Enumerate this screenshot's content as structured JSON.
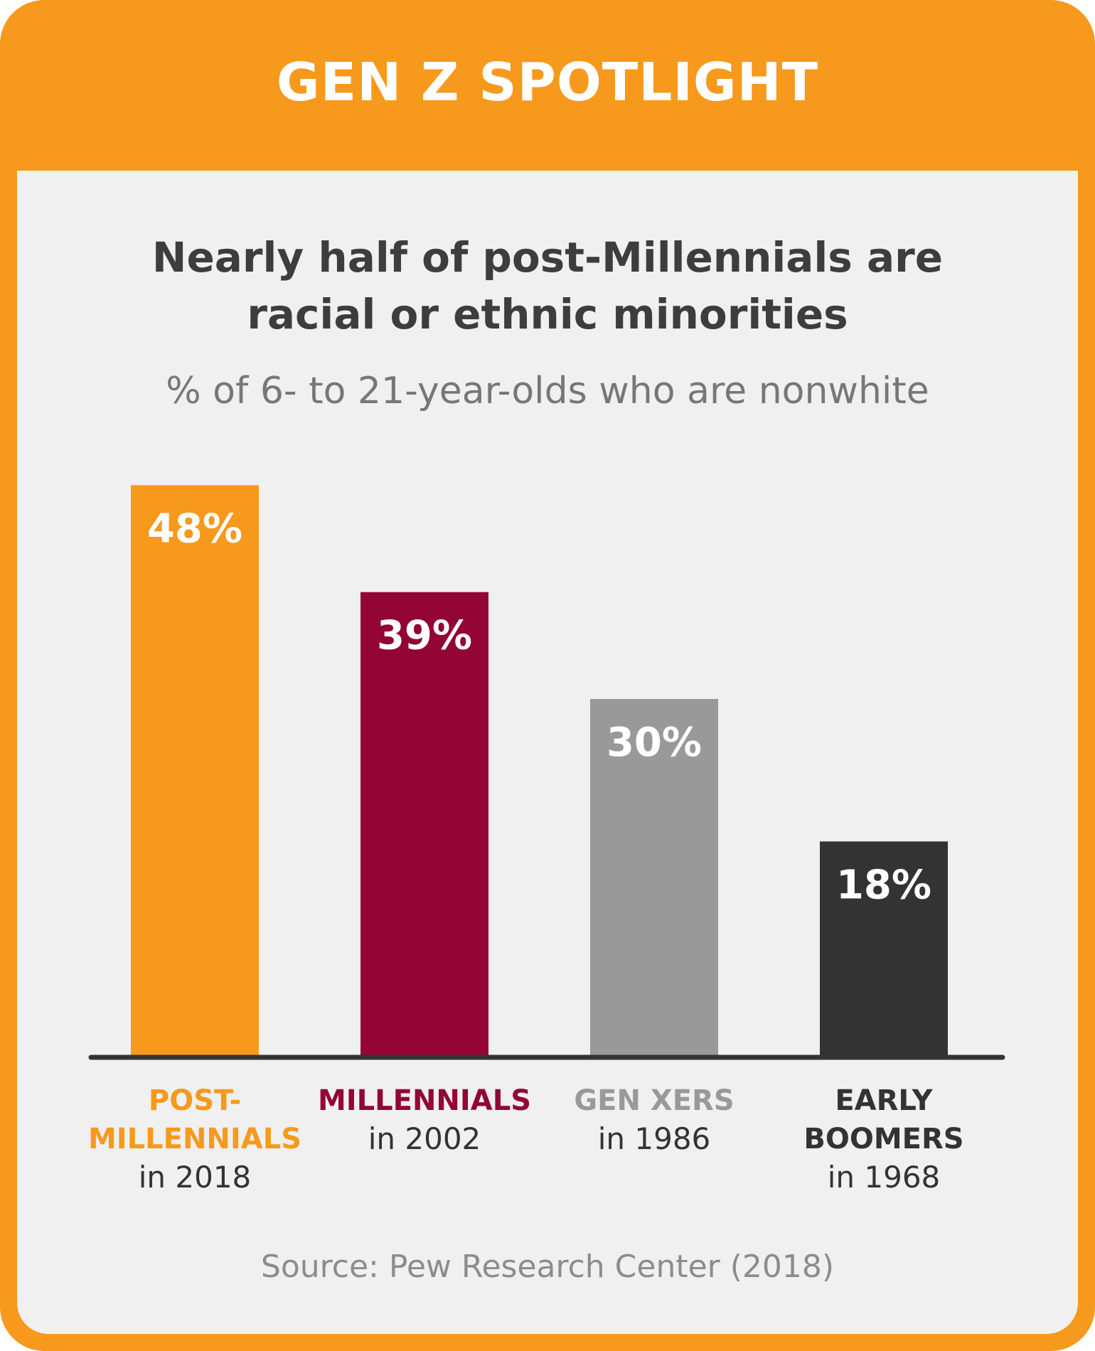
{
  "header": {
    "title": "GEN Z SPOTLIGHT"
  },
  "source": "Source: Pew Research Center (2018)",
  "colors": {
    "frame": "#F7991C",
    "panel": "#F0F0F0",
    "axis": "#333333"
  },
  "chart_data": {
    "type": "bar",
    "title_lines": [
      "Nearly half of post-Millennials are",
      "racial or ethnic minorities"
    ],
    "subtitle": "% of 6- to 21-year-olds who are nonwhite",
    "categories": [
      "POST-MILLENNIALS in 2018",
      "MILLENNIALS in 2002",
      "GEN XERS in 1986",
      "EARLY BOOMERS in 1968"
    ],
    "category_labels": [
      {
        "name_lines": [
          "POST-",
          "MILLENNIALS"
        ],
        "year": "in 2018"
      },
      {
        "name_lines": [
          "MILLENNIALS"
        ],
        "year": "in 2002"
      },
      {
        "name_lines": [
          "GEN XERS"
        ],
        "year": "in 1986"
      },
      {
        "name_lines": [
          "EARLY",
          "BOOMERS"
        ],
        "year": "in 1968"
      }
    ],
    "values": [
      48,
      39,
      30,
      18
    ],
    "value_labels": [
      "48%",
      "39%",
      "30%",
      "18%"
    ],
    "bar_colors": [
      "#F7991C",
      "#930535",
      "#999999",
      "#333333"
    ],
    "ylim": [
      0,
      48
    ],
    "grid": false,
    "legend": "none"
  }
}
